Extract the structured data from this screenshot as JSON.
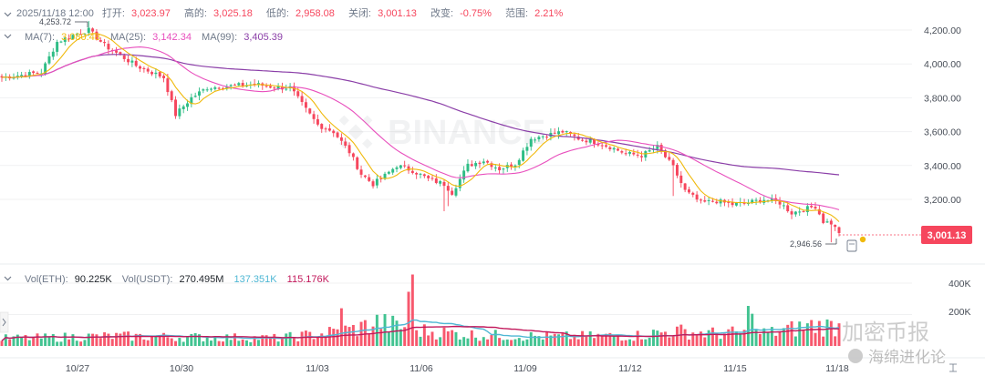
{
  "header": {
    "timestamp": "2025/11/18 12:00",
    "open_label": "打开:",
    "open_value": "3,023.97",
    "high_label": "高的:",
    "high_value": "3,025.18",
    "low_label": "低的:",
    "low_value": "2,958.08",
    "close_label": "关闭:",
    "close_value": "3,001.13",
    "change_label": "改变:",
    "change_value": "-0.75%",
    "range_label": "范围:",
    "range_value": "2.21%"
  },
  "ma_legend": {
    "ma7_label": "MA(7):",
    "ma7_value": "3,080.48",
    "ma25_label": "MA(25):",
    "ma25_value": "3,142.34",
    "ma99_label": "MA(99):",
    "ma99_value": "3,405.39"
  },
  "vol_legend": {
    "vol_eth_label": "Vol(ETH):",
    "vol_eth_value": "90.225K",
    "vol_usdt_label": "Vol(USDT):",
    "vol_usdt_value": "270.495M",
    "vol_ma1_value": "137.351K",
    "vol_ma2_value": "115.176K"
  },
  "price_tag": "3,001.13",
  "high_marker": "4,253.72",
  "low_marker": "2,946.56",
  "watermark": "BINANCE",
  "overlay_text": {
    "brand": "加密币报",
    "wechat": "海绵进化论"
  },
  "colors": {
    "up": "#2ebd85",
    "down": "#f6465d",
    "ma7": "#f0b90b",
    "ma25": "#e84fbd",
    "ma99": "#8b3fa8",
    "vol_ma1": "#4fb7d4",
    "vol_ma2": "#c2185b"
  },
  "chart_data": {
    "type": "candlestick",
    "interval": "4h",
    "x_ticks": [
      "10/27",
      "10/30",
      "11/03",
      "11/06",
      "11/09",
      "11/12",
      "11/15",
      "11/18"
    ],
    "y_ticks": [
      3200,
      3400,
      3600,
      3800,
      4000,
      4200
    ],
    "y_tick_labels": [
      "3,200.00",
      "3,400.00",
      "3,600.00",
      "3,800.00",
      "4,000.00",
      "4,200.00"
    ],
    "ylim": [
      3070,
      4240
    ],
    "volume_ticks": [
      "200K",
      "400K"
    ],
    "volume_ylim": [
      0,
      470
    ],
    "anchors_close": [
      [
        0,
        3920
      ],
      [
        5,
        3935
      ],
      [
        10,
        3950
      ],
      [
        14,
        4130
      ],
      [
        18,
        4170
      ],
      [
        22,
        4200
      ],
      [
        26,
        4110
      ],
      [
        30,
        4050
      ],
      [
        34,
        3990
      ],
      [
        38,
        3950
      ],
      [
        41,
        3920
      ],
      [
        44,
        3700
      ],
      [
        48,
        3800
      ],
      [
        52,
        3860
      ],
      [
        58,
        3870
      ],
      [
        64,
        3880
      ],
      [
        70,
        3860
      ],
      [
        73,
        3860
      ],
      [
        77,
        3730
      ],
      [
        80,
        3640
      ],
      [
        84,
        3600
      ],
      [
        88,
        3480
      ],
      [
        91,
        3350
      ],
      [
        94,
        3290
      ],
      [
        97,
        3340
      ],
      [
        100,
        3400
      ],
      [
        104,
        3370
      ],
      [
        108,
        3320
      ],
      [
        112,
        3290
      ],
      [
        114,
        3240
      ],
      [
        118,
        3400
      ],
      [
        122,
        3430
      ],
      [
        126,
        3380
      ],
      [
        130,
        3410
      ],
      [
        134,
        3560
      ],
      [
        138,
        3580
      ],
      [
        142,
        3600
      ],
      [
        146,
        3560
      ],
      [
        150,
        3540
      ],
      [
        154,
        3510
      ],
      [
        158,
        3470
      ],
      [
        162,
        3460
      ],
      [
        166,
        3510
      ],
      [
        170,
        3390
      ],
      [
        173,
        3250
      ],
      [
        177,
        3180
      ],
      [
        181,
        3190
      ],
      [
        185,
        3170
      ],
      [
        189,
        3180
      ],
      [
        193,
        3200
      ],
      [
        197,
        3180
      ],
      [
        200,
        3120
      ],
      [
        203,
        3140
      ],
      [
        206,
        3160
      ],
      [
        208,
        3070
      ],
      [
        210,
        3060
      ],
      [
        212,
        3001
      ]
    ],
    "high_point": 4253.72,
    "low_point": 2946.56,
    "last_close": 3001.13,
    "volume_anchors_k": [
      [
        0,
        48
      ],
      [
        10,
        52
      ],
      [
        20,
        60
      ],
      [
        30,
        62
      ],
      [
        40,
        58
      ],
      [
        55,
        55
      ],
      [
        70,
        50
      ],
      [
        80,
        75
      ],
      [
        90,
        110
      ],
      [
        95,
        150
      ],
      [
        105,
        100
      ],
      [
        120,
        70
      ],
      [
        140,
        60
      ],
      [
        160,
        65
      ],
      [
        170,
        95
      ],
      [
        180,
        80
      ],
      [
        195,
        85
      ],
      [
        205,
        130
      ],
      [
        212,
        125
      ]
    ],
    "series": [
      {
        "name": "MA(7)",
        "value": 3080.48
      },
      {
        "name": "MA(25)",
        "value": 3142.34
      },
      {
        "name": "MA(99)",
        "value": 3405.39
      }
    ]
  }
}
